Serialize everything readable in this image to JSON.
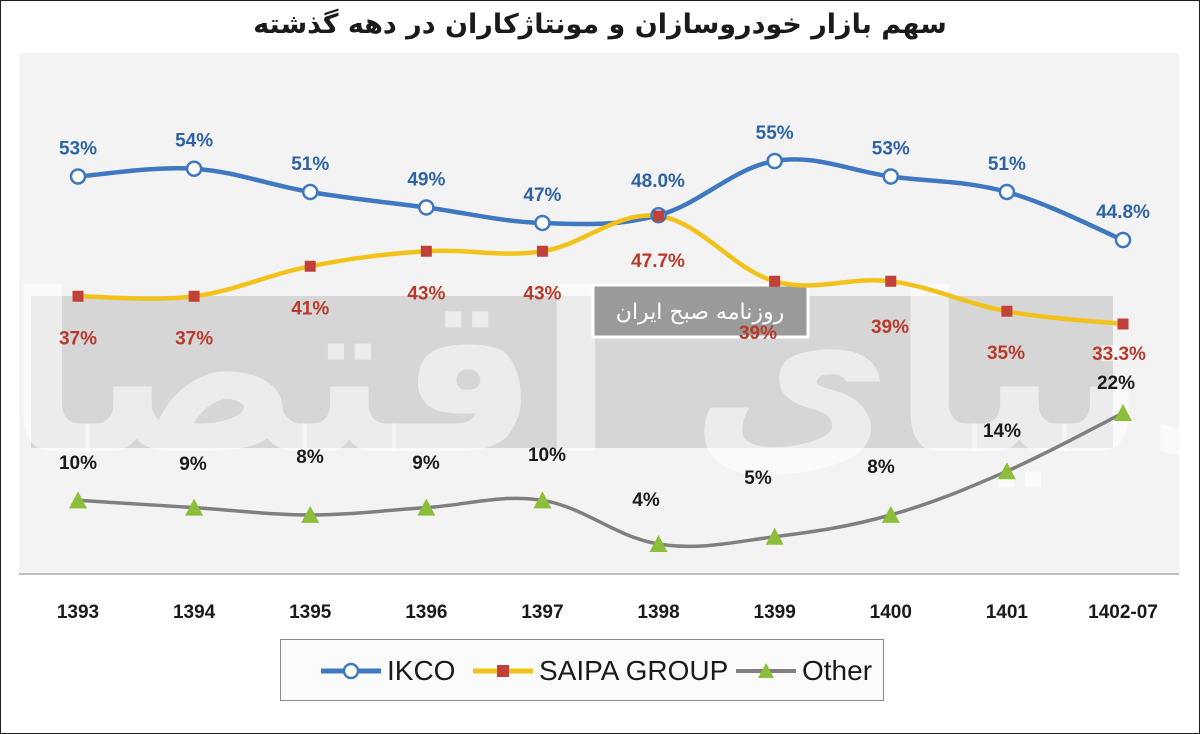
{
  "title": "سهم بازار خودروسازان و مونتاژکاران در دهه گذشته",
  "watermark": {
    "logo_text": "دنیای اقتصاد",
    "stamp_text": "روزنامه صبح ایران"
  },
  "colors": {
    "ikco": "#3f78c0",
    "saipa": "#f3c21a",
    "saipa_marker": "#c2403a",
    "other": "#7f7f7f",
    "other_marker": "#8bbf3a",
    "ikco_label": "#2e64a6",
    "saipa_label": "#b83a2a",
    "other_label": "#1a1a1a",
    "background": "#f3f3f3",
    "band": "#d6d6d6"
  },
  "chart_data": {
    "type": "line",
    "title": "سهم بازار خودروسازان و مونتاژکاران در دهه گذشته",
    "xlabel": "",
    "ylabel": "",
    "categories": [
      "1393",
      "1394",
      "1395",
      "1396",
      "1397",
      "1398",
      "1399",
      "1400",
      "1401",
      "1402-07"
    ],
    "series": [
      {
        "name": "IKCO",
        "values": [
          53,
          54,
          51,
          49,
          47,
          48.0,
          55,
          53,
          51,
          44.8
        ],
        "labels": [
          "53%",
          "54%",
          "51%",
          "49%",
          "47%",
          "48.0%",
          "55%",
          "53%",
          "51%",
          "44.8%"
        ],
        "color": "#3f78c0",
        "marker": "circle"
      },
      {
        "name": "SAIPA GROUP",
        "values": [
          37,
          37,
          41,
          43,
          43,
          47.7,
          39,
          39,
          35,
          33.3
        ],
        "labels": [
          "37%",
          "37%",
          "41%",
          "43%",
          "43%",
          "47.7%",
          "39%",
          "39%",
          "35%",
          "33.3%"
        ],
        "color": "#f3c21a",
        "marker": "square"
      },
      {
        "name": "Other",
        "values": [
          10,
          9,
          8,
          9,
          10,
          4,
          5,
          8,
          14,
          22
        ],
        "labels": [
          "10%",
          "9%",
          "8%",
          "9%",
          "10%",
          "4%",
          "5%",
          "8%",
          "14%",
          "22%"
        ],
        "color": "#7f7f7f",
        "marker": "triangle"
      }
    ],
    "grid": false,
    "legend_position": "bottom"
  }
}
